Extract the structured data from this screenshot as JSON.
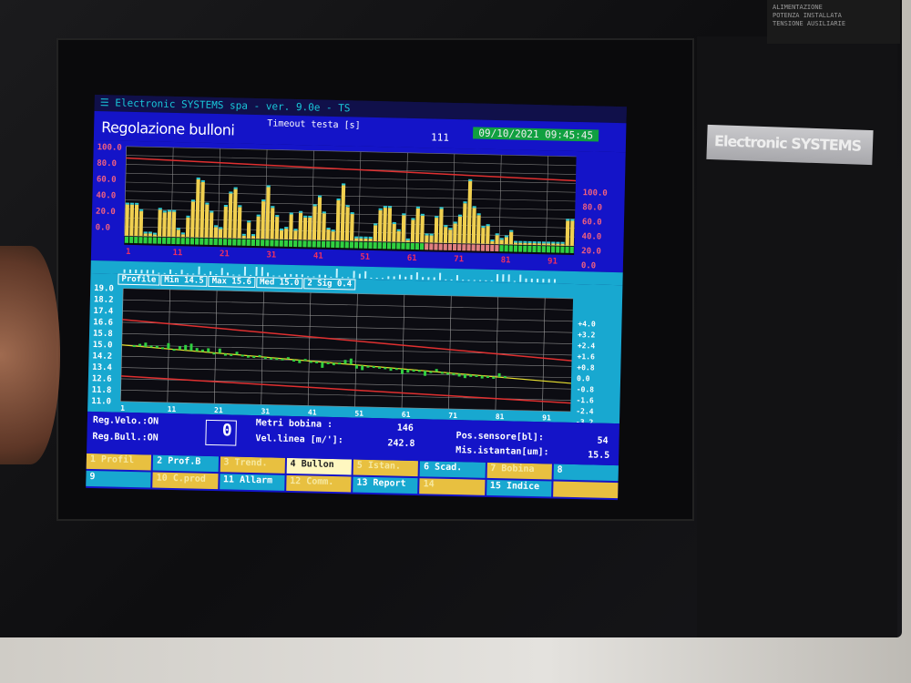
{
  "app": {
    "title": "Electronic SYSTEMS spa - ver. 9.0e - TS",
    "page_title": "Regolazione bulloni",
    "timeout_label": "Timeout testa [s]",
    "timeout_value": "111",
    "datetime": "09/10/2021 09:45:45"
  },
  "device": {
    "brand": "Electronic SYSTEMS",
    "plate_lines": [
      "ALIMENTAZIONE",
      "POTENZA INSTALLATA",
      "TENSIONE AUSILIARIE"
    ]
  },
  "colors": {
    "screen_blue": "#1414c8",
    "cyan": "#18a8d0",
    "bar_yellow": "#f0d050",
    "limit_red": "#e03030",
    "ok_green": "#30d040",
    "trend_yellow": "#e8e030"
  },
  "chart_data": [
    {
      "type": "bar",
      "left_ticks": [
        "100.0",
        "80.0",
        "60.0",
        "40.0",
        "20.0",
        "0.0"
      ],
      "right_ticks": [
        "100.0",
        "80.0",
        "60.0",
        "40.0",
        "20.0",
        "0.0"
      ],
      "x_ticks": [
        "1",
        "11",
        "21",
        "31",
        "41",
        "51",
        "61",
        "71",
        "81",
        "91"
      ],
      "ylim": [
        0,
        100
      ],
      "limit_line": [
        87,
        73
      ],
      "values": [
        35,
        35,
        35,
        28,
        3,
        3,
        2,
        30,
        27,
        28,
        28,
        8,
        3,
        22,
        40,
        65,
        62,
        37,
        28,
        12,
        10,
        35,
        50,
        55,
        35,
        3,
        18,
        3,
        25,
        42,
        58,
        35,
        25,
        10,
        12,
        28,
        10,
        30,
        25,
        25,
        38,
        48,
        30,
        12,
        10,
        45,
        62,
        38,
        30,
        3,
        3,
        3,
        3,
        18,
        35,
        38,
        38,
        20,
        12,
        30,
        2,
        25,
        38,
        30,
        8,
        8,
        28,
        38,
        18,
        15,
        22,
        30,
        45,
        70,
        40,
        32,
        18,
        20,
        3,
        10,
        5,
        8,
        14,
        2,
        2,
        2,
        2,
        2,
        2,
        2,
        2,
        2,
        2,
        2,
        28,
        28
      ],
      "status_segments": [
        {
          "from": 1,
          "to": 64,
          "state": "ok"
        },
        {
          "from": 65,
          "to": 80,
          "state": "alarm"
        },
        {
          "from": 81,
          "to": 96,
          "state": "ok"
        }
      ]
    },
    {
      "type": "line",
      "left_ticks": [
        "19.0",
        "18.2",
        "17.4",
        "16.6",
        "15.8",
        "15.0",
        "14.2",
        "13.4",
        "12.6",
        "11.8",
        "11.0"
      ],
      "right_ticks": [
        "+4.0",
        "+3.2",
        "+2.4",
        "+1.6",
        "+0.8",
        "0.0",
        "-0.8",
        "-1.6",
        "-2.4",
        "-3.2",
        "-4.0"
      ],
      "x_ticks": [
        "1",
        "11",
        "21",
        "31",
        "41",
        "51",
        "61",
        "71",
        "81",
        "91"
      ],
      "ylim": [
        11.0,
        19.0
      ],
      "upper_limit": [
        16.8,
        14.6
      ],
      "lower_limit": [
        12.8,
        11.6
      ],
      "trend": [
        15.0,
        13.0
      ],
      "values": [
        15.0,
        15.1,
        15.2,
        15.0,
        15.0,
        14.9,
        15.2,
        14.8,
        15.0,
        15.1,
        15.2,
        14.9,
        14.8,
        14.9,
        14.6,
        14.9,
        14.4,
        14.5,
        14.7,
        14.5,
        14.3,
        14.4,
        14.5,
        14.3,
        14.2,
        14.3,
        14.2,
        14.4,
        14.1,
        14.0,
        14.3,
        14.1,
        14.1,
        13.7,
        14.0,
        13.9,
        14.1,
        14.3,
        14.4,
        13.7,
        13.6,
        13.8,
        13.9,
        13.8,
        13.7,
        13.6,
        13.8,
        13.4,
        13.5,
        13.6,
        13.7,
        13.3,
        13.6,
        13.8,
        13.6,
        13.5,
        13.5,
        13.3,
        13.2,
        13.3,
        13.4,
        13.2,
        13.3,
        13.2,
        13.6,
        13.4
      ]
    },
    {
      "type": "strip",
      "values": [
        4,
        4,
        4,
        4,
        4,
        4,
        1,
        1,
        5,
        1,
        5,
        1,
        1,
        9,
        1,
        4,
        1,
        8,
        3,
        1,
        1,
        10,
        1,
        10,
        10,
        4,
        1,
        1,
        3,
        3,
        3,
        3,
        1,
        1,
        3,
        3,
        1,
        10,
        1,
        1,
        8,
        5,
        8,
        1,
        1,
        1,
        3,
        3,
        5,
        3,
        5,
        8,
        3,
        3,
        3,
        8,
        1,
        1,
        6,
        1,
        1,
        1,
        1,
        1,
        1,
        8,
        8,
        8,
        1,
        8,
        4,
        4,
        4,
        4,
        4,
        4
      ]
    }
  ],
  "stats": {
    "profile": "Profile",
    "min": "Min  14.5",
    "max": "Max  15.6",
    "med": "Med  15.0",
    "sig": "2 Sig  0.4"
  },
  "status": {
    "reg_velo": "Reg.Velo.:ON",
    "reg_bull": "Reg.Bull.:ON",
    "counter": "0",
    "metri_label": "Metri bobina      :",
    "metri_value": "146",
    "vel_label": "Vel.linea [m/']:",
    "vel_value": "242.8",
    "pos_label": "Pos.sensore[bl]:",
    "pos_value": "54",
    "mis_label": "Mis.istantan[um]:",
    "mis_value": "15.5"
  },
  "fkeys": {
    "row1": [
      {
        "label": "1 Profil",
        "style": "y"
      },
      {
        "label": "2 Prof.B",
        "style": "c"
      },
      {
        "label": "3 Trend.",
        "style": "y"
      },
      {
        "label": "4 Bullon",
        "style": "sel"
      },
      {
        "label": "5 Istan.",
        "style": "y"
      },
      {
        "label": "6 Scad.",
        "style": "c"
      },
      {
        "label": "7 Bobina",
        "style": "y"
      },
      {
        "label": "8",
        "style": "c"
      }
    ],
    "row2": [
      {
        "label": "9",
        "style": "c"
      },
      {
        "label": "10 C.prod",
        "style": "y"
      },
      {
        "label": "11 Allarm",
        "style": "c"
      },
      {
        "label": "12 Comm.",
        "style": "y"
      },
      {
        "label": "13 Report",
        "style": "c"
      },
      {
        "label": "14",
        "style": "y"
      },
      {
        "label": "15 Indice",
        "style": "c"
      },
      {
        "label": "",
        "style": "y"
      }
    ]
  }
}
